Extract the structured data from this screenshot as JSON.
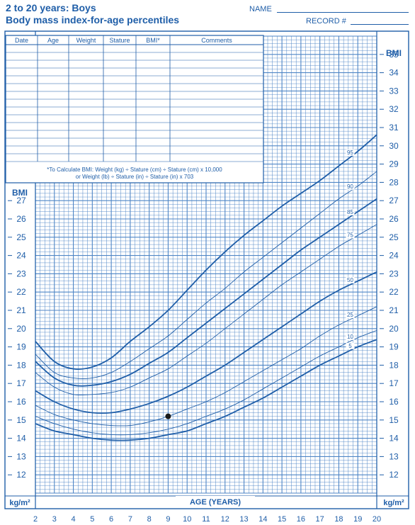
{
  "header": {
    "title_line1": "2 to 20 years: Boys",
    "title_line2": "Body mass index-for-age percentiles",
    "name_label": "NAME",
    "record_label": "RECORD #"
  },
  "table": {
    "columns": [
      "Date",
      "Age",
      "Weight",
      "Stature",
      "BMI*",
      "Comments"
    ],
    "note_line1": "*To Calculate BMI: Weight (kg) ÷ Stature (cm) ÷ Stature (cm) x 10,000",
    "note_line2": "or Weight (lb) ÷ Stature (in) ÷ Stature (in) x 703"
  },
  "colors": {
    "ink": "#1f5ea8",
    "grid": "#4f86c6",
    "point": "#1a1a1a"
  },
  "chart_data": {
    "type": "line",
    "xlabel": "AGE (YEARS)",
    "ylabel": "BMI",
    "unit_label": "kg/m²",
    "xlim": [
      2,
      20
    ],
    "ylim": [
      11,
      36
    ],
    "x_ticks": [
      2,
      3,
      4,
      5,
      6,
      7,
      8,
      9,
      10,
      11,
      12,
      13,
      14,
      15,
      16,
      17,
      18,
      19,
      20
    ],
    "y_ticks_left": [
      12,
      13,
      14,
      15,
      16,
      17,
      18,
      19,
      20,
      21,
      22,
      23,
      24,
      25,
      26,
      27
    ],
    "y_ticks_right": [
      12,
      13,
      14,
      15,
      16,
      17,
      18,
      19,
      20,
      21,
      22,
      23,
      24,
      25,
      26,
      27,
      28,
      29,
      30,
      31,
      32,
      33,
      34,
      35
    ],
    "x": [
      2,
      3,
      4,
      5,
      6,
      7,
      8,
      9,
      10,
      11,
      12,
      13,
      14,
      15,
      16,
      17,
      18,
      19,
      20
    ],
    "series": [
      {
        "name": "95",
        "values": [
          19.3,
          18.2,
          17.8,
          17.9,
          18.4,
          19.3,
          20.1,
          21.0,
          22.1,
          23.2,
          24.2,
          25.1,
          25.9,
          26.7,
          27.4,
          28.1,
          28.9,
          29.7,
          30.6
        ],
        "label_x": 18.6
      },
      {
        "name": "90",
        "values": [
          18.6,
          17.6,
          17.3,
          17.3,
          17.6,
          18.2,
          18.9,
          19.6,
          20.5,
          21.4,
          22.2,
          23.1,
          23.9,
          24.7,
          25.5,
          26.3,
          27.1,
          27.8,
          28.6
        ],
        "label_x": 18.6
      },
      {
        "name": "85",
        "values": [
          18.2,
          17.3,
          16.9,
          16.9,
          17.1,
          17.5,
          18.1,
          18.7,
          19.5,
          20.3,
          21.1,
          21.9,
          22.7,
          23.5,
          24.3,
          25.0,
          25.7,
          26.4,
          27.1
        ],
        "label_x": 18.6
      },
      {
        "name": "75",
        "values": [
          17.6,
          16.8,
          16.4,
          16.4,
          16.5,
          16.8,
          17.3,
          17.8,
          18.5,
          19.2,
          20.0,
          20.8,
          21.6,
          22.4,
          23.1,
          23.8,
          24.5,
          25.1,
          25.7
        ],
        "label_x": 18.6
      },
      {
        "name": "50",
        "values": [
          16.6,
          16.0,
          15.6,
          15.4,
          15.4,
          15.6,
          15.9,
          16.3,
          16.8,
          17.4,
          18.0,
          18.7,
          19.4,
          20.1,
          20.8,
          21.5,
          22.1,
          22.6,
          23.1
        ],
        "label_x": 18.6
      },
      {
        "name": "25",
        "values": [
          15.8,
          15.3,
          15.0,
          14.8,
          14.7,
          14.7,
          14.9,
          15.2,
          15.6,
          16.0,
          16.5,
          17.1,
          17.7,
          18.3,
          18.9,
          19.6,
          20.2,
          20.7,
          21.2
        ],
        "label_x": 18.6
      },
      {
        "name": "10",
        "values": [
          15.2,
          14.8,
          14.5,
          14.3,
          14.2,
          14.2,
          14.3,
          14.5,
          14.8,
          15.2,
          15.6,
          16.1,
          16.7,
          17.3,
          17.9,
          18.5,
          19.0,
          19.5,
          19.9
        ],
        "label_x": 18.6
      },
      {
        "name": "5",
        "values": [
          14.8,
          14.4,
          14.2,
          14.0,
          13.9,
          13.9,
          14.0,
          14.2,
          14.4,
          14.8,
          15.2,
          15.7,
          16.2,
          16.8,
          17.4,
          18.0,
          18.5,
          19.0,
          19.4
        ],
        "label_x": 18.6
      }
    ],
    "points": [
      {
        "x": 9.0,
        "y": 15.2
      }
    ]
  }
}
